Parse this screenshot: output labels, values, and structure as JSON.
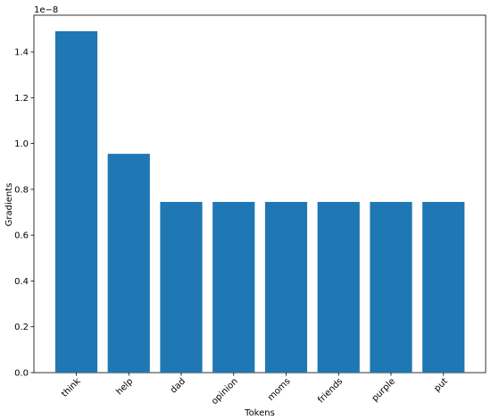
{
  "chart_data": {
    "type": "bar",
    "categories": [
      "think",
      "help",
      "dad",
      "opinion",
      "moms",
      "friends",
      "purple",
      "put"
    ],
    "values": [
      1.49e-08,
      9.55e-09,
      7.45e-09,
      7.45e-09,
      7.45e-09,
      7.45e-09,
      7.45e-09,
      7.45e-09
    ],
    "xlabel": "Tokens",
    "ylabel": "Gradients",
    "y_scale_label": "1e−8",
    "ylim": [
      0,
      1.56e-08
    ],
    "yticks": [
      0.0,
      0.2,
      0.4,
      0.6,
      0.8,
      1.0,
      1.2,
      1.4
    ],
    "ytick_labels": [
      "0.0",
      "0.2",
      "0.4",
      "0.6",
      "0.8",
      "1.0",
      "1.2",
      "1.4"
    ],
    "bar_color": "#1f77b4",
    "grid": false
  }
}
